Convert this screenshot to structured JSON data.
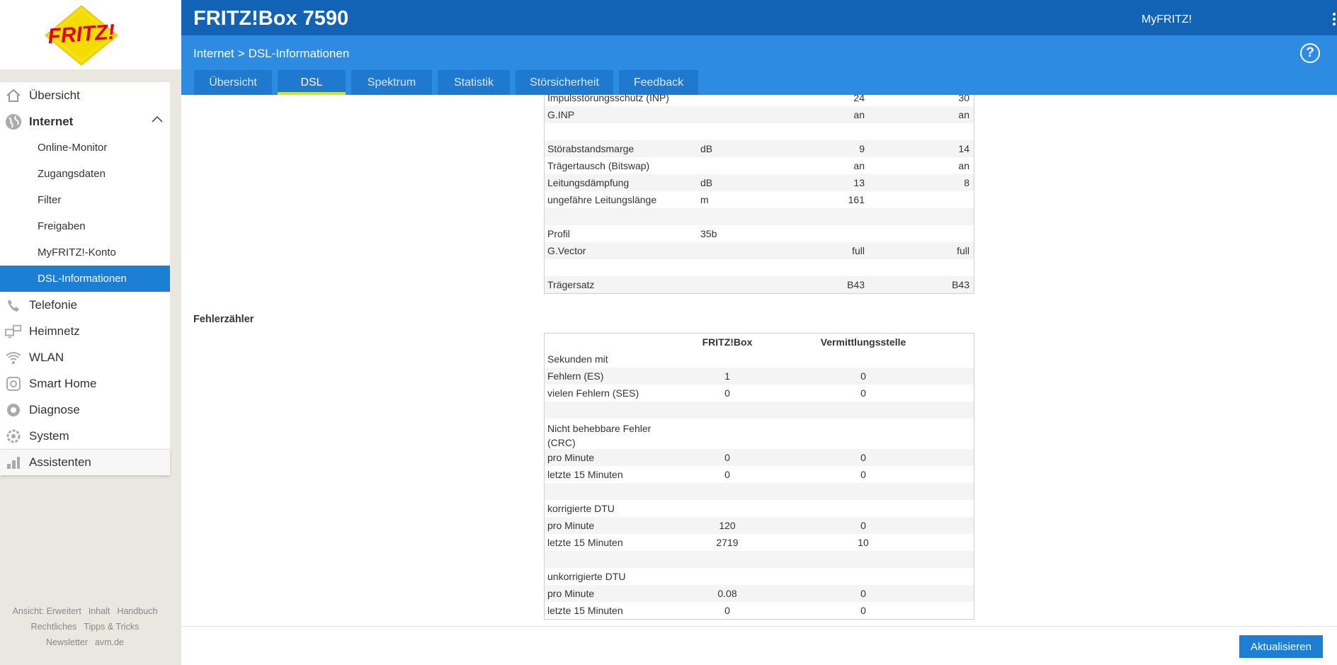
{
  "brand": {
    "logo_text": "FRITZ!"
  },
  "header": {
    "product_title": "FRITZ!Box 7590",
    "myfritz_link": "MyFRITZ!",
    "help_symbol": "?"
  },
  "breadcrumb": {
    "section": "Internet",
    "separator": ">",
    "page": "DSL-Informationen"
  },
  "tabs": [
    {
      "label": "Übersicht",
      "active": false
    },
    {
      "label": "DSL",
      "active": true
    },
    {
      "label": "Spektrum",
      "active": false
    },
    {
      "label": "Statistik",
      "active": false
    },
    {
      "label": "Störsicherheit",
      "active": false
    },
    {
      "label": "Feedback",
      "active": false
    }
  ],
  "sidebar": {
    "items": [
      {
        "label": "Übersicht",
        "icon": "home-icon"
      },
      {
        "label": "Internet",
        "icon": "globe-icon",
        "expanded": true
      },
      {
        "label": "Telefonie",
        "icon": "phone-icon"
      },
      {
        "label": "Heimnetz",
        "icon": "network-icon"
      },
      {
        "label": "WLAN",
        "icon": "wifi-icon"
      },
      {
        "label": "Smart Home",
        "icon": "smart-home-icon"
      },
      {
        "label": "Diagnose",
        "icon": "diagnose-icon"
      },
      {
        "label": "System",
        "icon": "system-icon"
      },
      {
        "label": "Assistenten",
        "icon": "assistant-icon"
      }
    ],
    "internet_subitems": [
      "Online-Monitor",
      "Zugangsdaten",
      "Filter",
      "Freigaben",
      "MyFRITZ!-Konto",
      "DSL-Informationen"
    ],
    "active_subitem": "DSL-Informationen"
  },
  "footer_links": {
    "view": "Ansicht: Erweitert",
    "content": "Inhalt",
    "manual": "Handbuch",
    "legal": "Rechtliches",
    "tips": "Tipps & Tricks",
    "newsletter": "Newsletter",
    "site": "avm.de"
  },
  "line_table": {
    "rows": [
      {
        "label": "Impulsstörungsschutz (INP)",
        "unit": "",
        "fritzbox": "24",
        "exchange": "30"
      },
      {
        "label": "G.INP",
        "unit": "",
        "fritzbox": "an",
        "exchange": "an"
      },
      {
        "label": "",
        "unit": "",
        "fritzbox": "",
        "exchange": ""
      },
      {
        "label": "Störabstandsmarge",
        "unit": "dB",
        "fritzbox": "9",
        "exchange": "14"
      },
      {
        "label": "Trägertausch (Bitswap)",
        "unit": "",
        "fritzbox": "an",
        "exchange": "an"
      },
      {
        "label": "Leitungsdämpfung",
        "unit": "dB",
        "fritzbox": "13",
        "exchange": "8"
      },
      {
        "label": "ungefähre Leitungslänge",
        "unit": "m",
        "fritzbox": "161",
        "exchange": ""
      },
      {
        "label": "",
        "unit": "",
        "fritzbox": "",
        "exchange": ""
      },
      {
        "label": "Profil",
        "unit": "35b",
        "fritzbox": "",
        "exchange": ""
      },
      {
        "label": "G.Vector",
        "unit": "",
        "fritzbox": "full",
        "exchange": "full"
      },
      {
        "label": "",
        "unit": "",
        "fritzbox": "",
        "exchange": ""
      },
      {
        "label": "Trägersatz",
        "unit": "",
        "fritzbox": "B43",
        "exchange": "B43"
      }
    ]
  },
  "error_counter": {
    "title": "Fehlerzähler",
    "columns": {
      "fritzbox": "FRITZ!Box",
      "exchange": "Vermittlungsstelle"
    },
    "rows": [
      {
        "label": "Sekunden mit",
        "fritzbox": "",
        "exchange": ""
      },
      {
        "label": "Fehlern (ES)",
        "fritzbox": "1",
        "exchange": "0"
      },
      {
        "label": "vielen Fehlern (SES)",
        "fritzbox": "0",
        "exchange": "0"
      },
      {
        "label": "",
        "fritzbox": "",
        "exchange": ""
      },
      {
        "label": "Nicht behebbare Fehler (CRC)",
        "fritzbox": "",
        "exchange": ""
      },
      {
        "label": "pro Minute",
        "fritzbox": "0",
        "exchange": "0"
      },
      {
        "label": "letzte 15 Minuten",
        "fritzbox": "0",
        "exchange": "0"
      },
      {
        "label": "",
        "fritzbox": "",
        "exchange": ""
      },
      {
        "label": "korrigierte DTU",
        "fritzbox": "",
        "exchange": ""
      },
      {
        "label": "pro Minute",
        "fritzbox": "120",
        "exchange": "0"
      },
      {
        "label": "letzte 15 Minuten",
        "fritzbox": "2719",
        "exchange": "10"
      },
      {
        "label": "",
        "fritzbox": "",
        "exchange": ""
      },
      {
        "label": "unkorrigierte DTU",
        "fritzbox": "",
        "exchange": ""
      },
      {
        "label": "pro Minute",
        "fritzbox": "0.08",
        "exchange": "0"
      },
      {
        "label": "letzte 15 Minuten",
        "fritzbox": "0",
        "exchange": "0"
      }
    ]
  },
  "actions": {
    "refresh_label": "Aktualisieren"
  },
  "colors": {
    "header_blue": "#1263b6",
    "subbar_blue": "#2d8ce2",
    "tab_blue": "#1f79cf",
    "active_item_blue": "#1d7fd3",
    "tab_underline": "#c8e633",
    "logo_red": "#e2001a",
    "logo_yellow": "#f5dc00"
  }
}
